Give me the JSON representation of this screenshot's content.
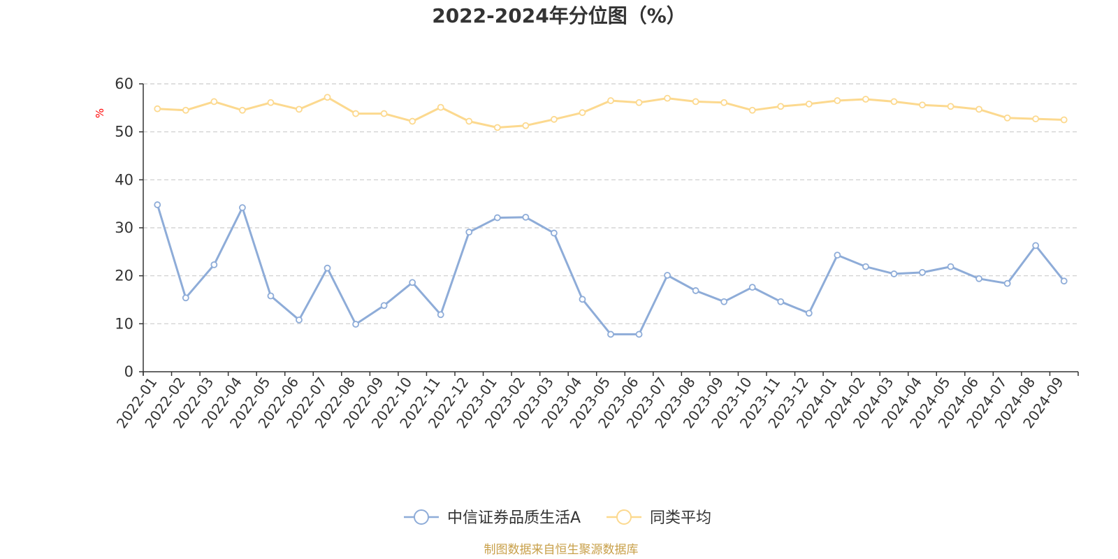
{
  "chart_data": {
    "type": "line",
    "title": "2022-2024年分位图（%）",
    "ylabel": "%",
    "ylim": [
      0,
      60
    ],
    "yticks": [
      0,
      10,
      20,
      30,
      40,
      50,
      60
    ],
    "grid": true,
    "legend_position": "bottom",
    "categories": [
      "2022-01",
      "2022-02",
      "2022-03",
      "2022-04",
      "2022-05",
      "2022-06",
      "2022-07",
      "2022-08",
      "2022-09",
      "2022-10",
      "2022-11",
      "2022-12",
      "2023-01",
      "2023-02",
      "2023-03",
      "2023-04",
      "2023-05",
      "2023-06",
      "2023-07",
      "2023-08",
      "2023-09",
      "2023-10",
      "2023-11",
      "2023-12",
      "2024-01",
      "2024-02",
      "2024-03",
      "2024-04",
      "2024-05",
      "2024-06",
      "2024-07",
      "2024-08",
      "2024-09"
    ],
    "series": [
      {
        "name": "中信证券品质生活A",
        "color": "#8eacd8",
        "values": [
          34.8,
          15.4,
          22.3,
          34.2,
          15.8,
          10.8,
          21.6,
          9.9,
          13.8,
          18.6,
          11.9,
          29.1,
          32.1,
          32.2,
          28.9,
          15.1,
          7.8,
          7.8,
          20.1,
          16.9,
          14.6,
          17.6,
          14.6,
          12.2,
          24.3,
          21.9,
          20.4,
          20.7,
          21.9,
          19.4,
          18.4,
          26.3,
          18.9
        ]
      },
      {
        "name": "同类平均",
        "color": "#fcd98f",
        "values": [
          54.8,
          54.5,
          56.3,
          54.5,
          56.1,
          54.7,
          57.2,
          53.8,
          53.8,
          52.2,
          55.1,
          52.2,
          50.9,
          51.3,
          52.6,
          54.0,
          56.5,
          56.1,
          57.0,
          56.3,
          56.1,
          54.5,
          55.3,
          55.8,
          56.5,
          56.8,
          56.3,
          55.6,
          55.3,
          54.7,
          52.9,
          52.7,
          52.5
        ]
      }
    ]
  },
  "colors": {
    "axis": "#333333",
    "grid": "#cccccc",
    "ylabel": "#ff0000",
    "source": "#c8a04a"
  },
  "source_text": "制图数据来自恒生聚源数据库"
}
